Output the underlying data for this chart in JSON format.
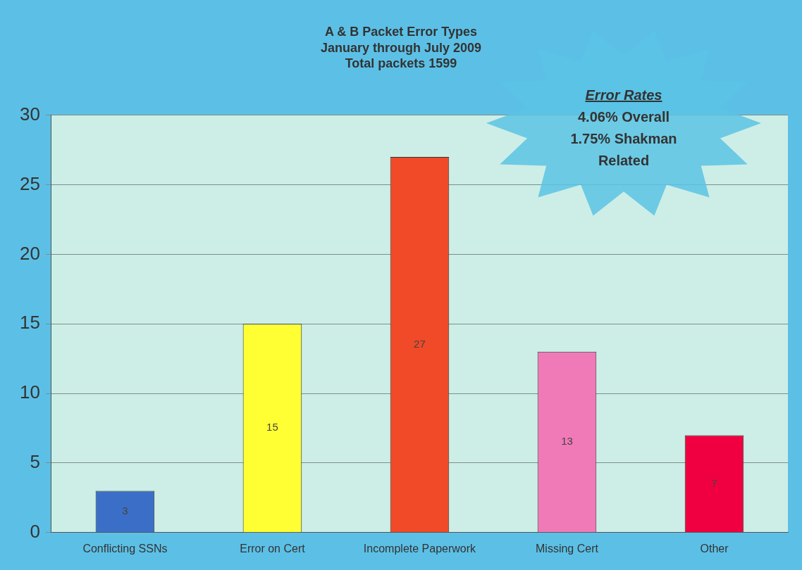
{
  "chart_data": {
    "type": "bar",
    "title": "A & B Packet Error Types",
    "subtitle": "January through July 2009\nTotal packets 1599",
    "categories": [
      "Conflicting SSNs",
      "Error on Cert",
      "Incomplete Paperwork",
      "Missing Cert",
      "Other"
    ],
    "values": [
      3,
      15,
      27,
      13,
      7
    ],
    "colors": [
      "#3b6fc7",
      "#ffff33",
      "#f04a28",
      "#f07ab8",
      "#f00040"
    ],
    "ylim": [
      0,
      30
    ],
    "yticks": [
      0,
      5,
      10,
      15,
      20,
      25,
      30
    ],
    "grid": "y",
    "legend": false,
    "data_labels": true,
    "annotations": [
      "Error Rates",
      "4.06% Overall",
      "1.75% Shakman Related"
    ]
  }
}
